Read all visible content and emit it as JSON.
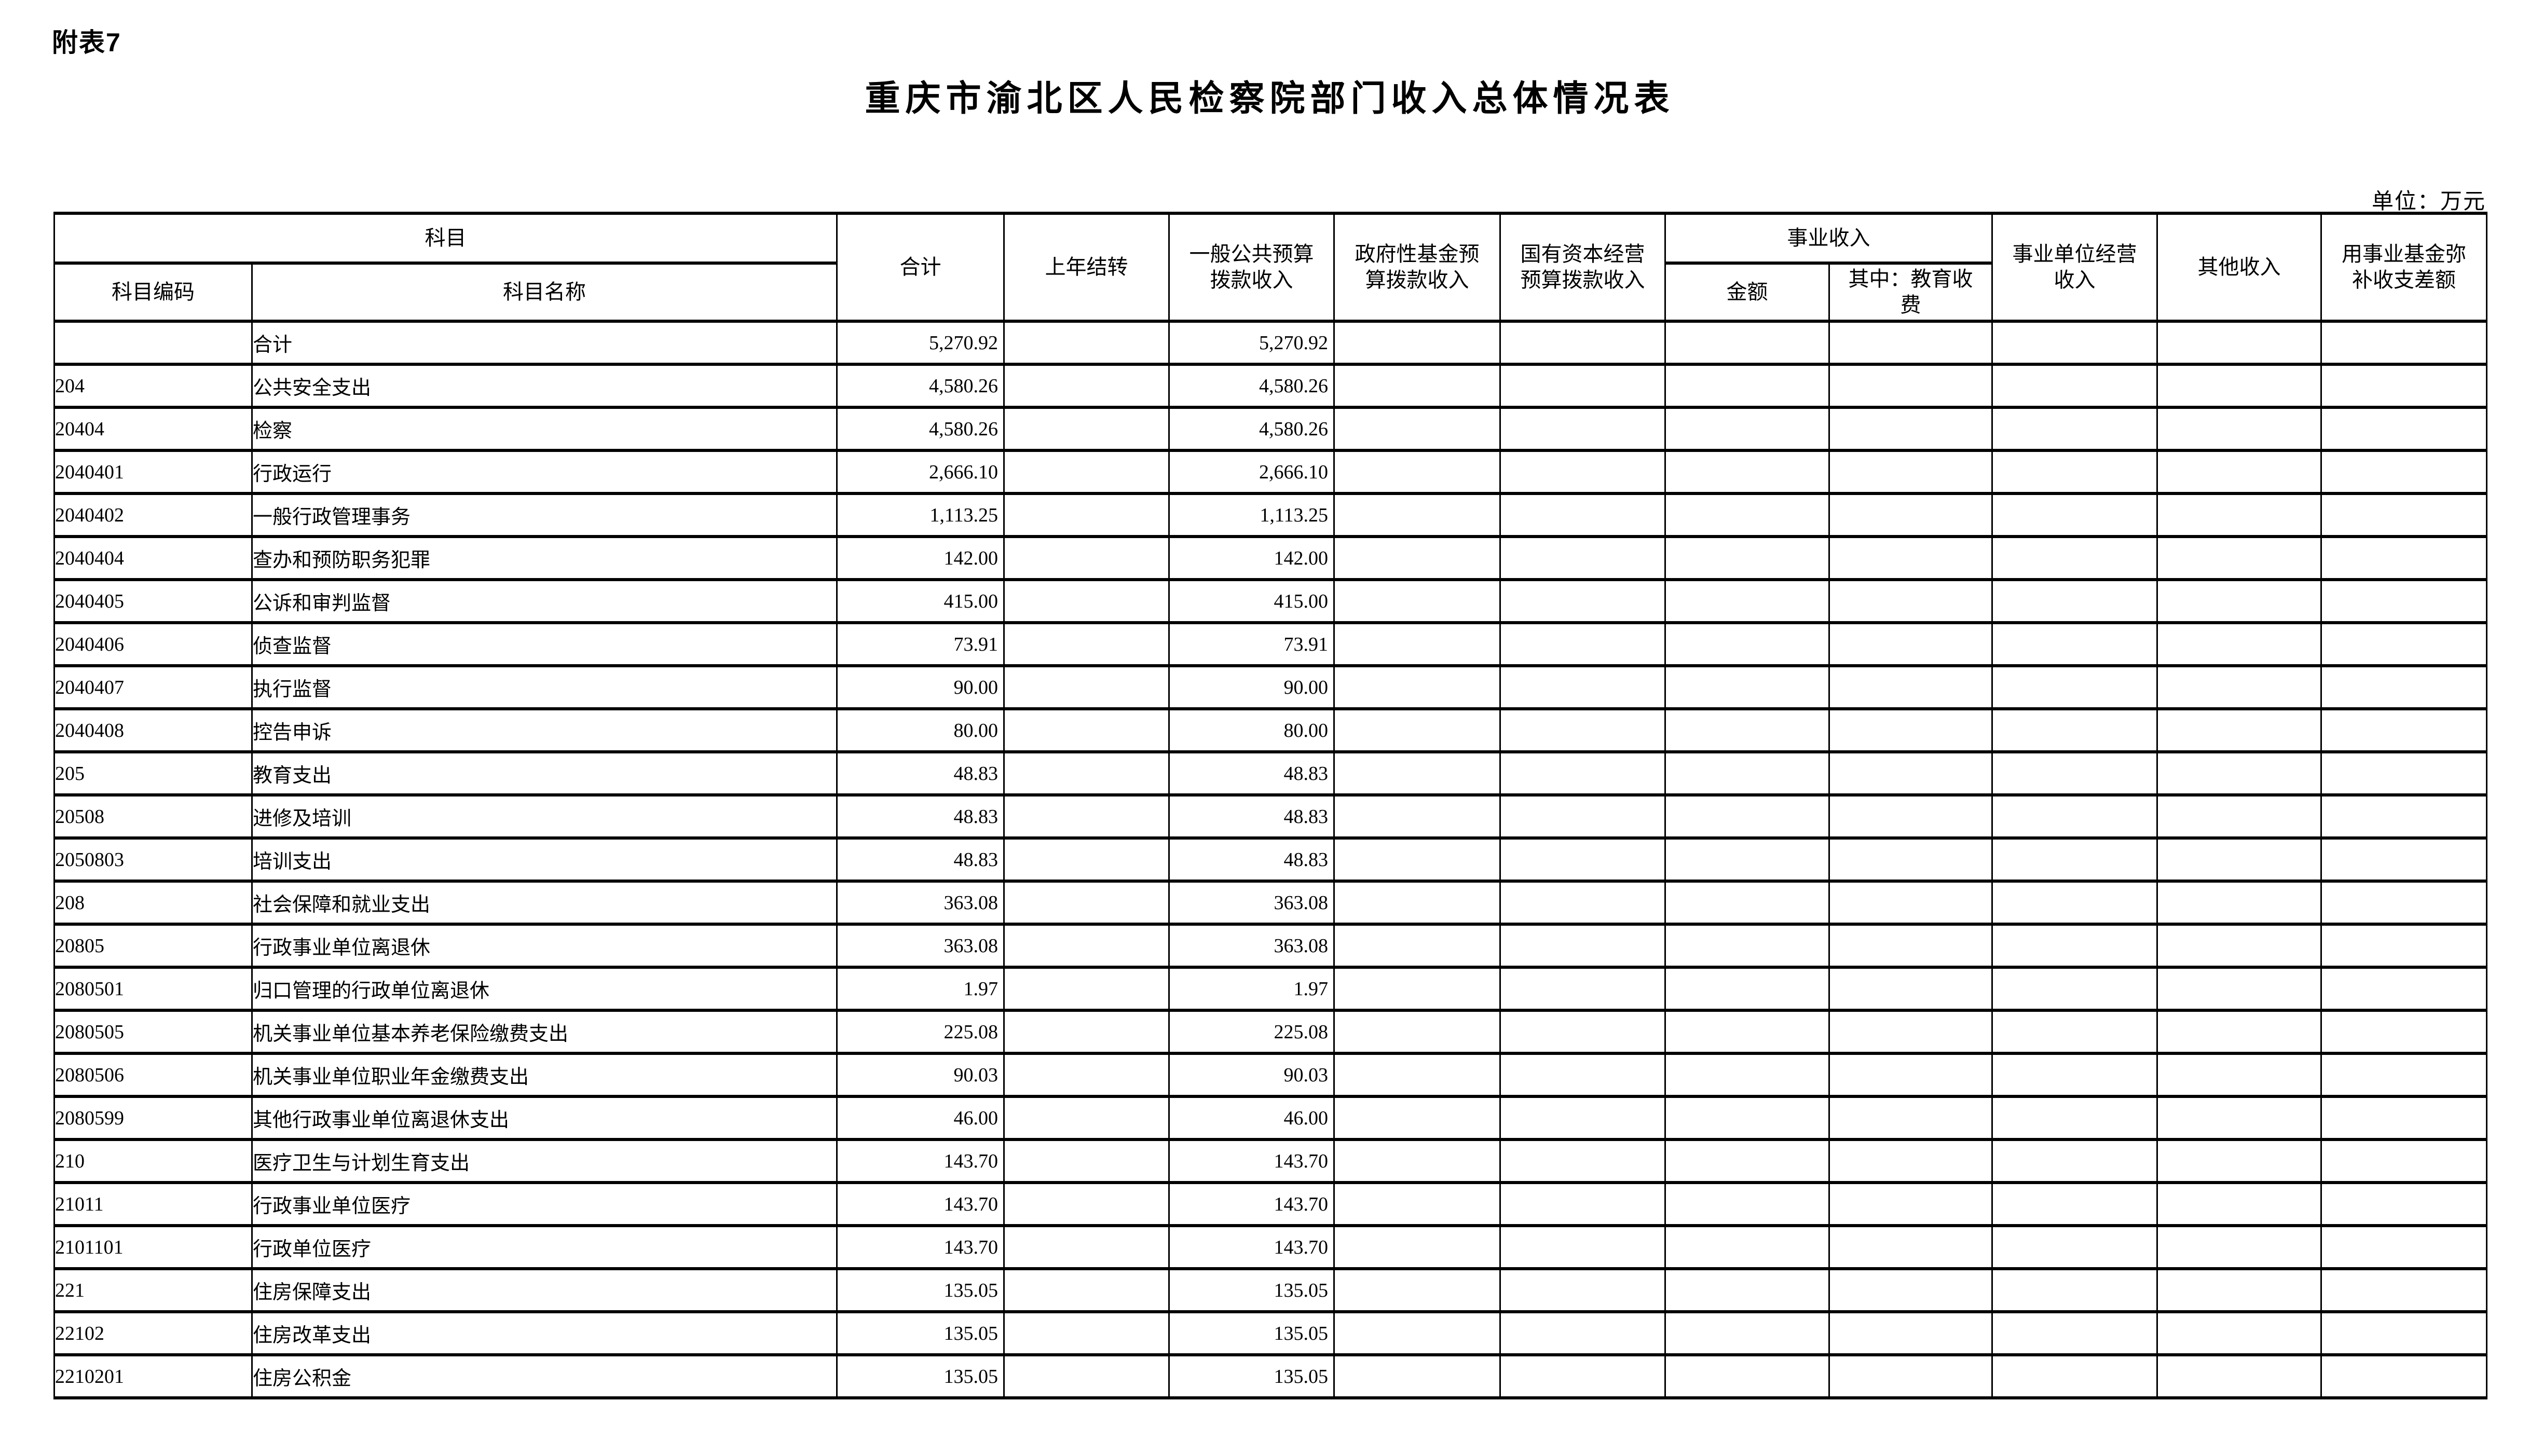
{
  "page": {
    "corner_label": "附表7",
    "title": "重庆市渝北区人民检察院部门收入总体情况表",
    "unit_note": "单位：万元"
  },
  "table": {
    "header": {
      "subject_group": "科目",
      "subject_code": "科目编码",
      "subject_name": "科目名称",
      "total": "合计",
      "carryover": "上年结转",
      "general_budget": "一般公共预算\n拨款收入",
      "gov_fund": "政府性基金预\n算拨款收入",
      "state_capital": "国有资本经营\n预算拨款收入",
      "business_income_group": "事业收入",
      "business_amount": "金额",
      "business_edu_fee": "其中：教育收\n费",
      "business_operating": "事业单位经营\n收入",
      "other_income": "其他收入",
      "fund_subsidy": "用事业基金弥\n补收支差额"
    },
    "rows": [
      {
        "code": "",
        "name": "合计",
        "level": 0,
        "values": [
          "5,270.92",
          "",
          "5,270.92",
          "",
          "",
          "",
          "",
          "",
          "",
          ""
        ]
      },
      {
        "code": "204",
        "name": "公共安全支出",
        "level": 0,
        "values": [
          "4,580.26",
          "",
          "4,580.26",
          "",
          "",
          "",
          "",
          "",
          "",
          ""
        ]
      },
      {
        "code": "20404",
        "name": "检察",
        "level": 1,
        "values": [
          "4,580.26",
          "",
          "4,580.26",
          "",
          "",
          "",
          "",
          "",
          "",
          ""
        ]
      },
      {
        "code": "2040401",
        "name": "行政运行",
        "level": 2,
        "values": [
          "2,666.10",
          "",
          "2,666.10",
          "",
          "",
          "",
          "",
          "",
          "",
          ""
        ]
      },
      {
        "code": "2040402",
        "name": "一般行政管理事务",
        "level": 2,
        "values": [
          "1,113.25",
          "",
          "1,113.25",
          "",
          "",
          "",
          "",
          "",
          "",
          ""
        ]
      },
      {
        "code": "2040404",
        "name": "查办和预防职务犯罪",
        "level": 2,
        "values": [
          "142.00",
          "",
          "142.00",
          "",
          "",
          "",
          "",
          "",
          "",
          ""
        ]
      },
      {
        "code": "2040405",
        "name": "公诉和审判监督",
        "level": 2,
        "values": [
          "415.00",
          "",
          "415.00",
          "",
          "",
          "",
          "",
          "",
          "",
          ""
        ]
      },
      {
        "code": "2040406",
        "name": "侦查监督",
        "level": 2,
        "values": [
          "73.91",
          "",
          "73.91",
          "",
          "",
          "",
          "",
          "",
          "",
          ""
        ]
      },
      {
        "code": "2040407",
        "name": "执行监督",
        "level": 2,
        "values": [
          "90.00",
          "",
          "90.00",
          "",
          "",
          "",
          "",
          "",
          "",
          ""
        ]
      },
      {
        "code": "2040408",
        "name": "控告申诉",
        "level": 2,
        "values": [
          "80.00",
          "",
          "80.00",
          "",
          "",
          "",
          "",
          "",
          "",
          ""
        ]
      },
      {
        "code": "205",
        "name": "教育支出",
        "level": 0,
        "values": [
          "48.83",
          "",
          "48.83",
          "",
          "",
          "",
          "",
          "",
          "",
          ""
        ]
      },
      {
        "code": "20508",
        "name": "进修及培训",
        "level": 1,
        "values": [
          "48.83",
          "",
          "48.83",
          "",
          "",
          "",
          "",
          "",
          "",
          ""
        ]
      },
      {
        "code": "2050803",
        "name": "培训支出",
        "level": 2,
        "values": [
          "48.83",
          "",
          "48.83",
          "",
          "",
          "",
          "",
          "",
          "",
          ""
        ]
      },
      {
        "code": "208",
        "name": "社会保障和就业支出",
        "level": 0,
        "values": [
          "363.08",
          "",
          "363.08",
          "",
          "",
          "",
          "",
          "",
          "",
          ""
        ]
      },
      {
        "code": "20805",
        "name": "行政事业单位离退休",
        "level": 1,
        "values": [
          "363.08",
          "",
          "363.08",
          "",
          "",
          "",
          "",
          "",
          "",
          ""
        ]
      },
      {
        "code": "2080501",
        "name": "归口管理的行政单位离退休",
        "level": 2,
        "values": [
          "1.97",
          "",
          "1.97",
          "",
          "",
          "",
          "",
          "",
          "",
          ""
        ]
      },
      {
        "code": "2080505",
        "name": "机关事业单位基本养老保险缴费支出",
        "level": 2,
        "values": [
          "225.08",
          "",
          "225.08",
          "",
          "",
          "",
          "",
          "",
          "",
          ""
        ]
      },
      {
        "code": "2080506",
        "name": "机关事业单位职业年金缴费支出",
        "level": 2,
        "values": [
          "90.03",
          "",
          "90.03",
          "",
          "",
          "",
          "",
          "",
          "",
          ""
        ]
      },
      {
        "code": "2080599",
        "name": "其他行政事业单位离退休支出",
        "level": 2,
        "values": [
          "46.00",
          "",
          "46.00",
          "",
          "",
          "",
          "",
          "",
          "",
          ""
        ]
      },
      {
        "code": "210",
        "name": "医疗卫生与计划生育支出",
        "level": 0,
        "values": [
          "143.70",
          "",
          "143.70",
          "",
          "",
          "",
          "",
          "",
          "",
          ""
        ]
      },
      {
        "code": "21011",
        "name": "行政事业单位医疗",
        "level": 1,
        "values": [
          "143.70",
          "",
          "143.70",
          "",
          "",
          "",
          "",
          "",
          "",
          ""
        ]
      },
      {
        "code": "2101101",
        "name": "行政单位医疗",
        "level": 2,
        "values": [
          "143.70",
          "",
          "143.70",
          "",
          "",
          "",
          "",
          "",
          "",
          ""
        ]
      },
      {
        "code": "221",
        "name": "住房保障支出",
        "level": 0,
        "values": [
          "135.05",
          "",
          "135.05",
          "",
          "",
          "",
          "",
          "",
          "",
          ""
        ]
      },
      {
        "code": "22102",
        "name": "住房改革支出",
        "level": 1,
        "values": [
          "135.05",
          "",
          "135.05",
          "",
          "",
          "",
          "",
          "",
          "",
          ""
        ]
      },
      {
        "code": "2210201",
        "name": "住房公积金",
        "level": 2,
        "values": [
          "135.05",
          "",
          "135.05",
          "",
          "",
          "",
          "",
          "",
          "",
          ""
        ]
      }
    ]
  }
}
